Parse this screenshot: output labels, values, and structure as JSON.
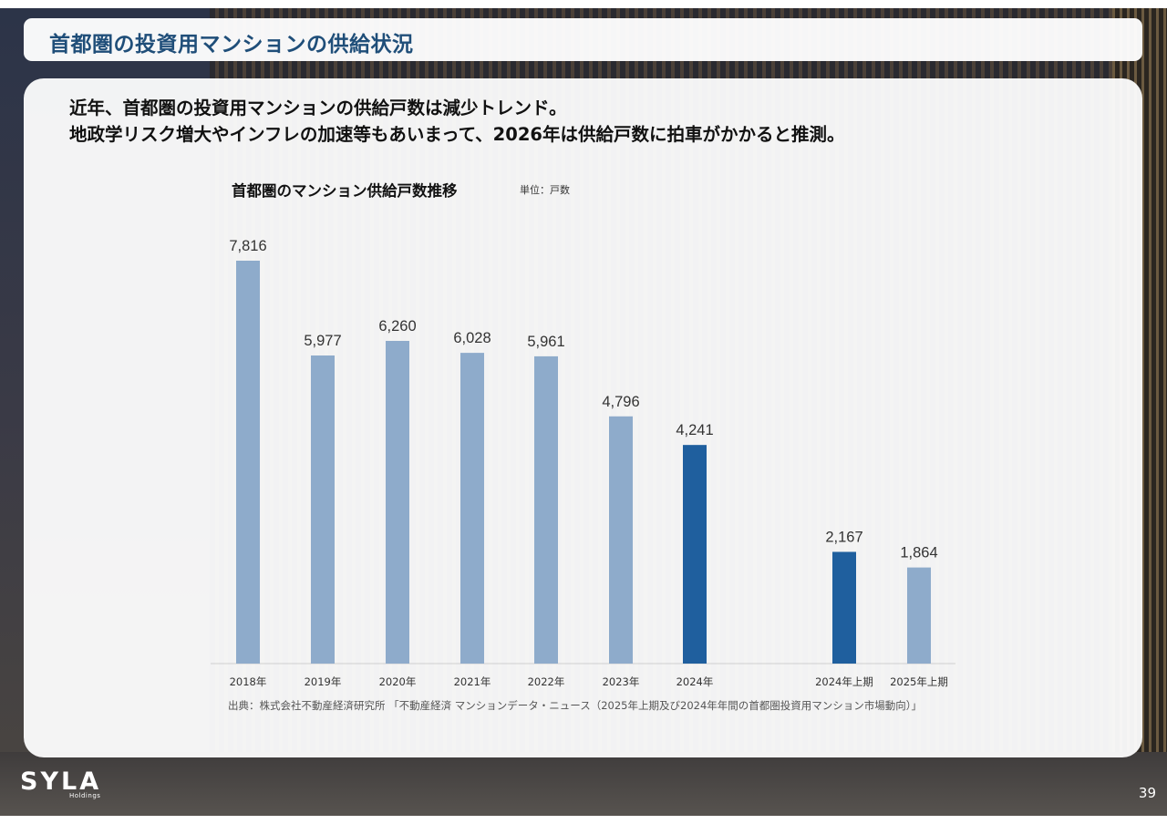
{
  "slide": {
    "title": "首都圏の投資用マンションの供給状況",
    "lead_line1": "近年、首都圏の投資用マンションの供給戸数は減少トレンド。",
    "lead_line2": "地政学リスク増大やインフレの加速等もあいまって、2026年は供給戸数に拍車がかかると推測。",
    "source": "出典：株式会社不動産経済研究所 「不動産経済 マンションデータ・ニュース（2025年上期及び2024年年間の首都圏投資用マンション市場動向）」",
    "logo_main": "SYLA",
    "logo_sub": "Holdings",
    "page_number": "39"
  },
  "chart_data": {
    "type": "bar",
    "title": "首都圏のマンション供給戸数推移",
    "unit": "単位：戸数",
    "categories": [
      "2018年",
      "2019年",
      "2020年",
      "2021年",
      "2022年",
      "2023年",
      "2024年",
      "2024年上期",
      "2025年上期"
    ],
    "values": [
      7816,
      5977,
      6260,
      6028,
      5961,
      4796,
      4241,
      2167,
      1864
    ],
    "value_labels": [
      "7,816",
      "5,977",
      "6,260",
      "6,028",
      "5,961",
      "4,796",
      "4,241",
      "2,167",
      "1,864"
    ],
    "highlight": [
      false,
      false,
      false,
      false,
      false,
      false,
      true,
      true,
      false
    ],
    "colors": {
      "normal": "#8eabcb",
      "highlight": "#1f5f9e",
      "baseline": "#cfcfcf"
    },
    "ylim": [
      0,
      7816
    ],
    "grid": false,
    "legend": "none"
  }
}
